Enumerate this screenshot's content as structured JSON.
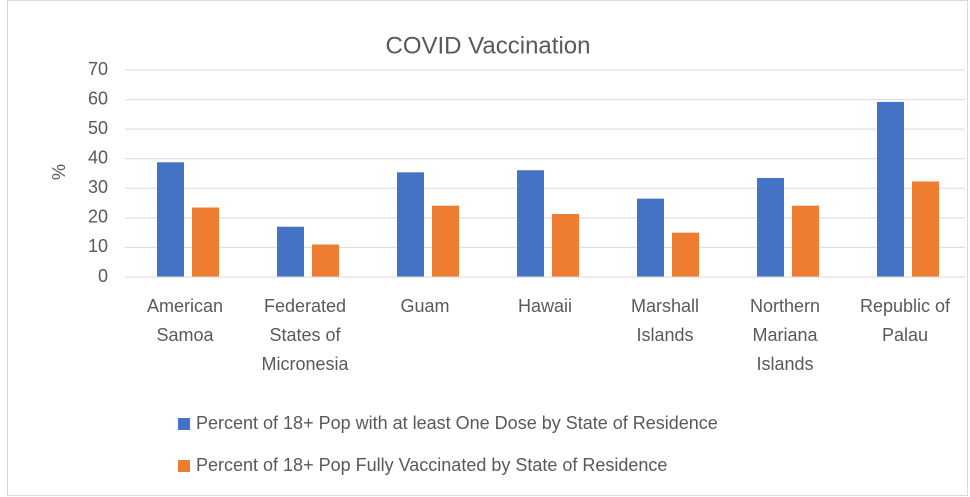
{
  "chart_data": {
    "type": "bar",
    "title": "COVID Vaccination",
    "y_label": "%",
    "categories": [
      "American Samoa",
      "Federated States of Micronesia",
      "Guam",
      "Hawaii",
      "Marshall Islands",
      "Northern Mariana Islands",
      "Republic of Palau"
    ],
    "series": [
      {
        "name": "Percent of 18+ Pop with at least One Dose by State of Residence",
        "color": "#4472c4",
        "values": [
          38.8,
          17,
          35.4,
          36.1,
          26.5,
          33.5,
          59.2
        ]
      },
      {
        "name": "Percent of 18+ Pop Fully Vaccinated by State of Residence",
        "color": "#ed7d31",
        "values": [
          23.5,
          11,
          24.1,
          21.3,
          15,
          24.1,
          32.3
        ]
      }
    ],
    "ylim": [
      0,
      70
    ],
    "yticks": [
      0,
      10,
      20,
      30,
      40,
      50,
      60,
      70
    ],
    "grid": true,
    "legend": "bottom"
  }
}
